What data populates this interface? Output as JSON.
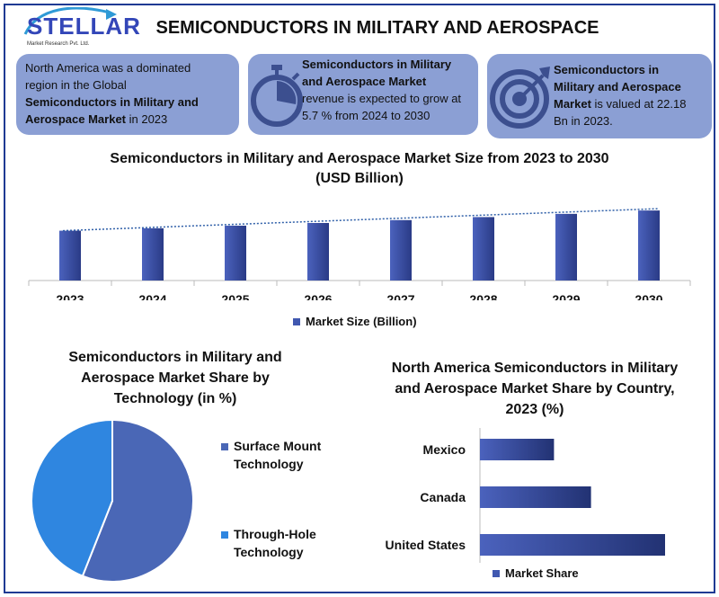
{
  "brand": {
    "name": "STELLAR",
    "tagline": "Market Research Pvt. Ltd."
  },
  "title": "SEMICONDUCTORS IN MILITARY AND AEROSPACE",
  "info_boxes": [
    {
      "icon": "map-icon",
      "lines": [
        "North America was a dominated",
        "region in the Global",
        "Semiconductors in Military and",
        "Aerospace Market in 2023"
      ]
    },
    {
      "icon": "stopwatch-icon",
      "lines": [
        "Semiconductors in Military",
        "and Aerospace Market",
        "revenue is expected to grow at",
        "5.7 % from 2024 to 2030"
      ]
    },
    {
      "icon": "target-icon",
      "lines": [
        "Semiconductors in",
        "Military and Aerospace",
        "Market is valued at 22.18",
        "Bn in 2023."
      ]
    }
  ],
  "colors": {
    "accent": "#3346b8",
    "box": "#8b9fd4",
    "bar": "#3a4fa8",
    "pie_a": "#4a67b6",
    "pie_b": "#2f86e0"
  },
  "chart_data": [
    {
      "type": "bar",
      "title": "Semiconductors in Military and Aerospace Market Size from 2023 to 2030",
      "subtitle": "(USD Billion)",
      "categories": [
        "2023",
        "2024",
        "2025",
        "2026",
        "2027",
        "2028",
        "2029",
        "2030"
      ],
      "series": [
        {
          "name": "Market Size (Billion)",
          "values": [
            22.18,
            23.44,
            24.78,
            26.19,
            27.68,
            29.26,
            30.93,
            32.69
          ]
        }
      ],
      "trendline": "linear dotted",
      "legend": "bottom",
      "grid": false
    },
    {
      "type": "pie",
      "title": "Semiconductors in Military and Aerospace Market Share by Technology (in %)",
      "labels": [
        "Surface Mount Technology",
        "Through-Hole Technology"
      ],
      "values": [
        56,
        44
      ],
      "legend": "right"
    },
    {
      "type": "bar",
      "orientation": "horizontal",
      "title": "North America Semiconductors in Military and Aerospace Market Share by Country, 2023 (%)",
      "categories": [
        "Mexico",
        "Canada",
        "United States"
      ],
      "series": [
        {
          "name": "Market Share",
          "values": [
            16,
            24,
            40
          ]
        }
      ],
      "legend": "bottom"
    }
  ]
}
